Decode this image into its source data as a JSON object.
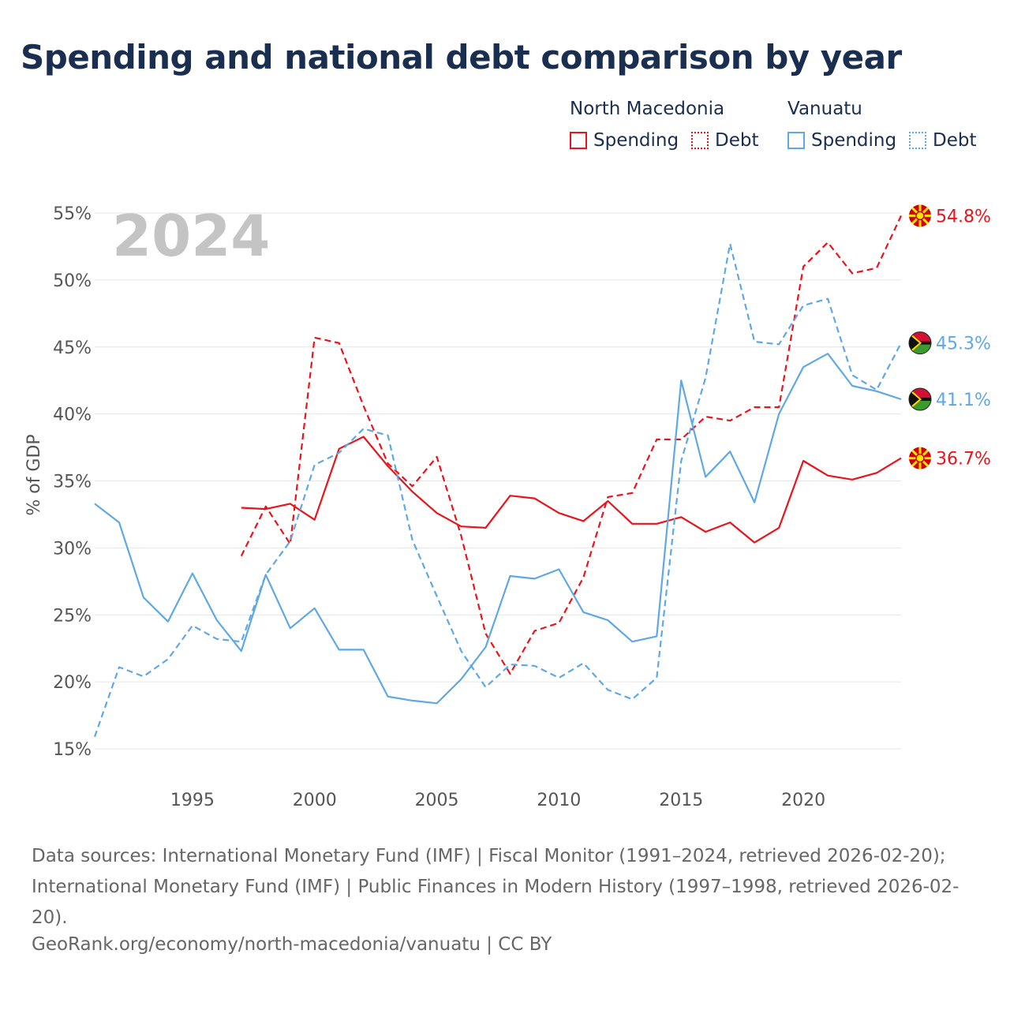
{
  "title": "Spending and national debt comparison by year",
  "legend": {
    "groups": [
      {
        "country": "North Macedonia",
        "items": [
          {
            "label": "Spending",
            "style": "solid"
          },
          {
            "label": "Debt",
            "style": "dotted"
          }
        ],
        "color": "#e8141c"
      },
      {
        "country": "Vanuatu",
        "items": [
          {
            "label": "Spending",
            "style": "solid"
          },
          {
            "label": "Debt",
            "style": "dotted"
          }
        ],
        "color": "#5fa8e6"
      }
    ]
  },
  "source_text": "Data sources: International Monetary Fund (IMF) | Fiscal Monitor (1991–2024, retrieved 2026-02-20); International Monetary Fund (IMF) | Public Finances in Modern History (1997–1998, retrieved 2026-02-20).",
  "credit": "GeoRank.org/economy/north-macedonia/vanuatu | CC BY",
  "chart_data": {
    "type": "line",
    "title": "Spending and national debt comparison by year",
    "year_label": "2024",
    "xlabel": "",
    "ylabel": "% of GDP",
    "xlim": [
      1991,
      2024
    ],
    "ylim": [
      15,
      55
    ],
    "x_ticks": [
      1995,
      2000,
      2005,
      2010,
      2015,
      2020
    ],
    "y_ticks": [
      15,
      20,
      25,
      30,
      35,
      40,
      45,
      50,
      55
    ],
    "y_tick_labels": [
      "15%",
      "20%",
      "25%",
      "30%",
      "35%",
      "40%",
      "45%",
      "50%",
      "55%"
    ],
    "grid": true,
    "series": [
      {
        "name": "North Macedonia Spending",
        "color": "#e8141c",
        "dash": "solid",
        "x": [
          1997,
          1998,
          1999,
          2000,
          2001,
          2002,
          2003,
          2004,
          2005,
          2006,
          2007,
          2008,
          2009,
          2010,
          2011,
          2012,
          2013,
          2014,
          2015,
          2016,
          2017,
          2018,
          2019,
          2020,
          2021,
          2022,
          2023,
          2024
        ],
        "values": [
          33.0,
          32.9,
          33.3,
          32.1,
          37.4,
          38.3,
          36.1,
          34.2,
          32.6,
          31.6,
          31.5,
          33.9,
          33.7,
          32.6,
          32.0,
          33.5,
          31.8,
          31.8,
          32.3,
          31.2,
          31.9,
          30.4,
          31.5,
          36.5,
          35.4,
          35.1,
          35.6,
          36.7
        ],
        "end_label": "36.7%"
      },
      {
        "name": "North Macedonia Debt",
        "color": "#e8141c",
        "dash": "dashed",
        "x": [
          1997,
          1998,
          1999,
          2000,
          2001,
          2002,
          2003,
          2004,
          2005,
          2006,
          2007,
          2008,
          2009,
          2010,
          2011,
          2012,
          2013,
          2014,
          2015,
          2016,
          2017,
          2018,
          2019,
          2020,
          2021,
          2022,
          2023,
          2024
        ],
        "values": [
          29.4,
          33.1,
          30.3,
          45.7,
          45.3,
          40.6,
          36.3,
          34.6,
          36.8,
          30.9,
          23.6,
          20.6,
          23.8,
          24.4,
          27.8,
          33.8,
          34.1,
          38.1,
          38.1,
          39.8,
          39.5,
          40.5,
          40.5,
          51.0,
          52.8,
          50.5,
          50.9,
          54.8
        ],
        "end_label": "54.8%"
      },
      {
        "name": "Vanuatu Spending",
        "color": "#5fa8e6",
        "dash": "solid",
        "x": [
          1991,
          1992,
          1993,
          1994,
          1995,
          1996,
          1997,
          1998,
          1999,
          2000,
          2001,
          2002,
          2003,
          2004,
          2005,
          2006,
          2007,
          2008,
          2009,
          2010,
          2011,
          2012,
          2013,
          2014,
          2015,
          2016,
          2017,
          2018,
          2019,
          2020,
          2021,
          2022,
          2023,
          2024
        ],
        "values": [
          33.3,
          31.9,
          26.3,
          24.5,
          28.1,
          24.6,
          22.3,
          28.0,
          24.0,
          25.5,
          22.4,
          22.4,
          18.9,
          18.6,
          18.4,
          20.2,
          22.6,
          27.9,
          27.7,
          28.4,
          25.2,
          24.6,
          23.0,
          23.4,
          42.5,
          35.3,
          37.2,
          33.4,
          40.0,
          43.5,
          44.5,
          42.1,
          41.7,
          41.1
        ],
        "end_label": "41.1%"
      },
      {
        "name": "Vanuatu Debt",
        "color": "#5fa8e6",
        "dash": "dashed",
        "x": [
          1991,
          1992,
          1993,
          1994,
          1995,
          1996,
          1997,
          1998,
          1999,
          2000,
          2001,
          2002,
          2003,
          2004,
          2005,
          2006,
          2007,
          2008,
          2009,
          2010,
          2011,
          2012,
          2013,
          2014,
          2015,
          2016,
          2017,
          2018,
          2019,
          2020,
          2021,
          2022,
          2023,
          2024
        ],
        "values": [
          15.9,
          21.1,
          20.4,
          21.7,
          24.2,
          23.2,
          23.0,
          28.0,
          30.5,
          36.2,
          37.1,
          38.9,
          38.4,
          30.6,
          26.4,
          22.3,
          19.6,
          21.3,
          21.2,
          20.3,
          21.4,
          19.4,
          18.7,
          20.3,
          36.5,
          42.7,
          52.7,
          45.4,
          45.2,
          48.1,
          48.6,
          42.9,
          41.8,
          45.3
        ],
        "end_label": "45.3%"
      }
    ]
  }
}
